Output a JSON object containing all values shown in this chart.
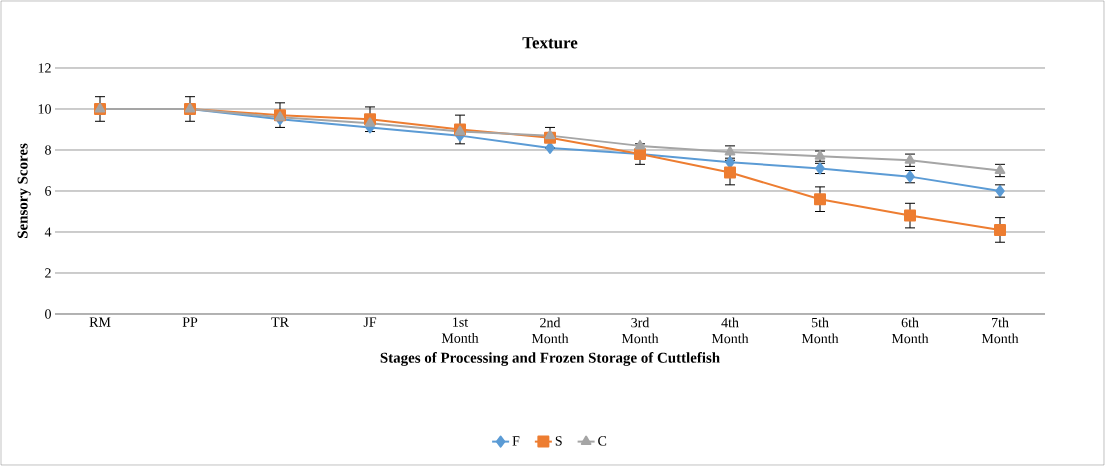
{
  "chart_data": {
    "type": "line",
    "title": "Texture",
    "xlabel": "Stages of Processing and Frozen Storage of Cuttlefish",
    "ylabel": "Sensory Scores",
    "categories": [
      "RM",
      "PP",
      "TR",
      "JF",
      "1st Month",
      "2nd Month",
      "3rd Month",
      "4th Month",
      "5th Month",
      "6th Month",
      "7th Month"
    ],
    "series": [
      {
        "name": "F",
        "color": "#5b9bd5",
        "marker": "diamond",
        "values": [
          10,
          10,
          9.5,
          9.1,
          8.7,
          8.1,
          7.8,
          7.4,
          7.1,
          6.7,
          6.0
        ],
        "errors": [
          null,
          null,
          null,
          null,
          null,
          null,
          null,
          null,
          0.25,
          0.3,
          0.3
        ]
      },
      {
        "name": "S",
        "color": "#ed7d31",
        "marker": "square",
        "values": [
          10,
          10,
          9.7,
          9.5,
          9.0,
          8.6,
          7.8,
          6.9,
          5.6,
          4.8,
          4.1
        ],
        "errors": [
          0.6,
          0.6,
          0.6,
          0.6,
          0.7,
          0.5,
          0.5,
          0.6,
          0.6,
          0.6,
          0.6
        ]
      },
      {
        "name": "C",
        "color": "#a5a5a5",
        "marker": "triangle",
        "values": [
          10,
          10,
          9.6,
          9.3,
          8.9,
          8.7,
          8.2,
          7.9,
          7.7,
          7.5,
          7.0
        ],
        "errors": [
          null,
          null,
          null,
          null,
          null,
          null,
          null,
          0.3,
          0.25,
          0.3,
          0.3
        ]
      }
    ],
    "ylim": [
      0,
      12
    ],
    "yticks": [
      0,
      2,
      4,
      6,
      8,
      10,
      12
    ],
    "grid": "y",
    "legend": "bottom",
    "line_style": "solid"
  }
}
